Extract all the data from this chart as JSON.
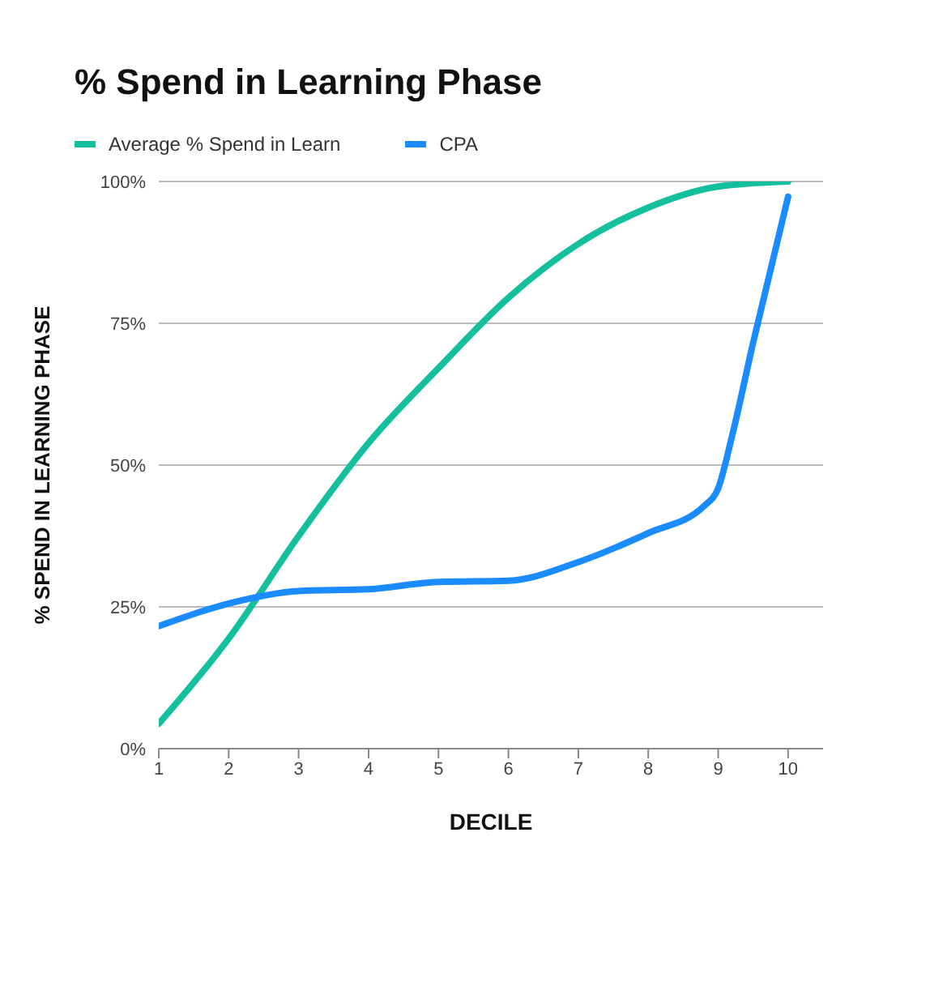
{
  "chart_data": {
    "type": "line",
    "title": "% Spend in Learning Phase",
    "xlabel": "DECILE",
    "ylabel": "% SPEND IN LEARNING PHASE",
    "series": [
      {
        "name": "Average % Spend in Learn",
        "color": "#14bf9e",
        "x": [
          1,
          2,
          3,
          4,
          5,
          6,
          7,
          8,
          9,
          10
        ],
        "values": [
          4.4,
          19.4,
          37.5,
          53.9,
          67.1,
          79.5,
          89,
          95.4,
          99.1,
          100
        ]
      },
      {
        "name": "CPA",
        "color": "#1a8cff",
        "x": [
          1,
          2,
          3,
          4,
          5,
          6,
          7,
          8,
          8.8,
          9,
          9.2,
          9.5,
          10
        ],
        "values": [
          21.6,
          25.6,
          27.8,
          28.1,
          29.4,
          29.6,
          32.9,
          38,
          42.8,
          45.9,
          55.2,
          71.6,
          97.3
        ]
      }
    ],
    "xlim": [
      1,
      10.5
    ],
    "xticks": [
      1,
      2,
      3,
      4,
      5,
      6,
      7,
      8,
      9,
      10
    ],
    "ylim": [
      0,
      100
    ],
    "yticks": [
      {
        "value": 0,
        "label": "0%"
      },
      {
        "value": 25,
        "label": "25%"
      },
      {
        "value": 50,
        "label": "50%"
      },
      {
        "value": 75,
        "label": "75%"
      },
      {
        "value": 100,
        "label": "100%"
      }
    ],
    "grid": "y",
    "legend": "top left",
    "marker": "none",
    "line_style": "solid"
  }
}
